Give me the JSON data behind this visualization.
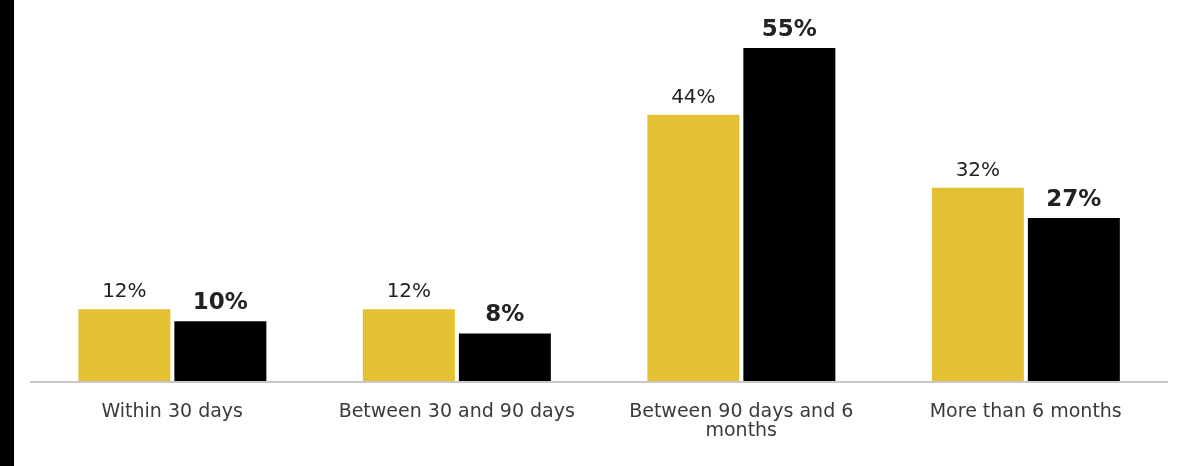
{
  "chart_data": {
    "type": "bar",
    "categories": [
      "Within 30 days",
      "Between 30 and 90 days",
      "Between 90 days and 6 months",
      "More than 6 months"
    ],
    "series": [
      {
        "color": "#e3c034",
        "values": [
          12,
          12,
          44,
          32
        ],
        "value_labels": [
          "12%",
          "12%",
          "44%",
          "32%"
        ]
      },
      {
        "color": "#000000",
        "values": [
          10,
          8,
          55,
          27
        ],
        "value_labels": [
          "10%",
          "8%",
          "55%",
          "27%"
        ]
      }
    ],
    "grid": false,
    "legend": false
  }
}
